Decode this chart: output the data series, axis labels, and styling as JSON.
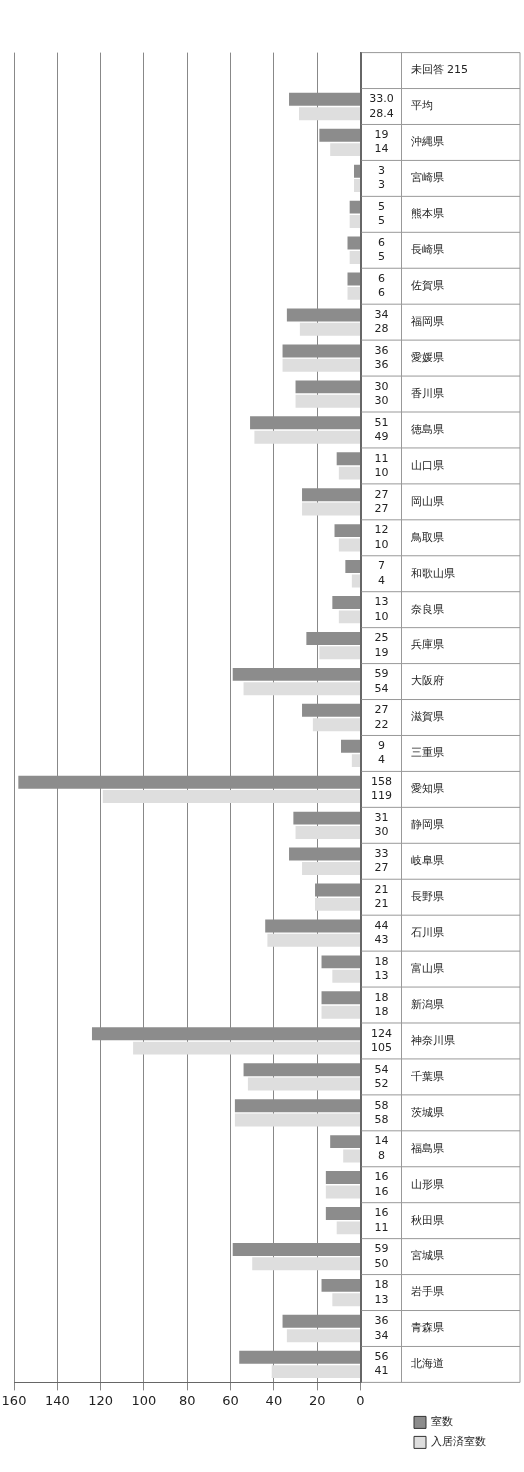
{
  "chart_data": {
    "type": "bar",
    "orientation": "horizontal",
    "categories": [
      "未回答 215",
      "平均",
      "沖縄県",
      "宮崎県",
      "熊本県",
      "長崎県",
      "佐賀県",
      "福岡県",
      "愛媛県",
      "香川県",
      "徳島県",
      "山口県",
      "岡山県",
      "鳥取県",
      "和歌山県",
      "奈良県",
      "兵庫県",
      "大阪府",
      "滋賀県",
      "三重県",
      "愛知県",
      "静岡県",
      "岐阜県",
      "長野県",
      "石川県",
      "富山県",
      "新潟県",
      "神奈川県",
      "千葉県",
      "茨城県",
      "福島県",
      "山形県",
      "秋田県",
      "宮城県",
      "岩手県",
      "青森県",
      "北海道"
    ],
    "series": [
      {
        "name": "室数",
        "color": "#8c8c8c",
        "values": [
          null,
          33.0,
          19,
          3,
          5,
          6,
          6,
          34,
          36,
          30,
          51,
          11,
          27,
          12,
          7,
          13,
          25,
          59,
          27,
          9,
          158,
          31,
          33,
          21,
          44,
          18,
          18,
          124,
          54,
          58,
          14,
          16,
          16,
          59,
          18,
          36,
          56
        ],
        "value_labels": [
          null,
          "33.0",
          "19",
          "3",
          "5",
          "6",
          "6",
          "34",
          "36",
          "30",
          "51",
          "11",
          "27",
          "12",
          "7",
          "13",
          "25",
          "59",
          "27",
          "9",
          "158",
          "31",
          "33",
          "21",
          "44",
          "18",
          "18",
          "124",
          "54",
          "58",
          "14",
          "16",
          "16",
          "59",
          "18",
          "36",
          "56"
        ]
      },
      {
        "name": "入居済室数",
        "color": "#dedede",
        "values": [
          null,
          28.4,
          14,
          3,
          5,
          5,
          6,
          28,
          36,
          30,
          49,
          10,
          27,
          10,
          4,
          10,
          19,
          54,
          22,
          4,
          119,
          30,
          27,
          21,
          43,
          13,
          18,
          105,
          52,
          58,
          8,
          16,
          11,
          50,
          13,
          34,
          41
        ],
        "value_labels": [
          null,
          "28.4",
          "14",
          "3",
          "5",
          "5",
          "6",
          "28",
          "36",
          "30",
          "49",
          "10",
          "27",
          "10",
          "4",
          "10",
          "19",
          "54",
          "22",
          "4",
          "119",
          "30",
          "27",
          "21",
          "43",
          "13",
          "18",
          "105",
          "52",
          "58",
          "8",
          "16",
          "11",
          "50",
          "13",
          "34",
          "41"
        ]
      }
    ],
    "xlim": [
      160,
      0
    ],
    "xticks": [
      0,
      20,
      40,
      60,
      80,
      100,
      120,
      140,
      160
    ],
    "grid": "x",
    "legend": "bottom right"
  }
}
